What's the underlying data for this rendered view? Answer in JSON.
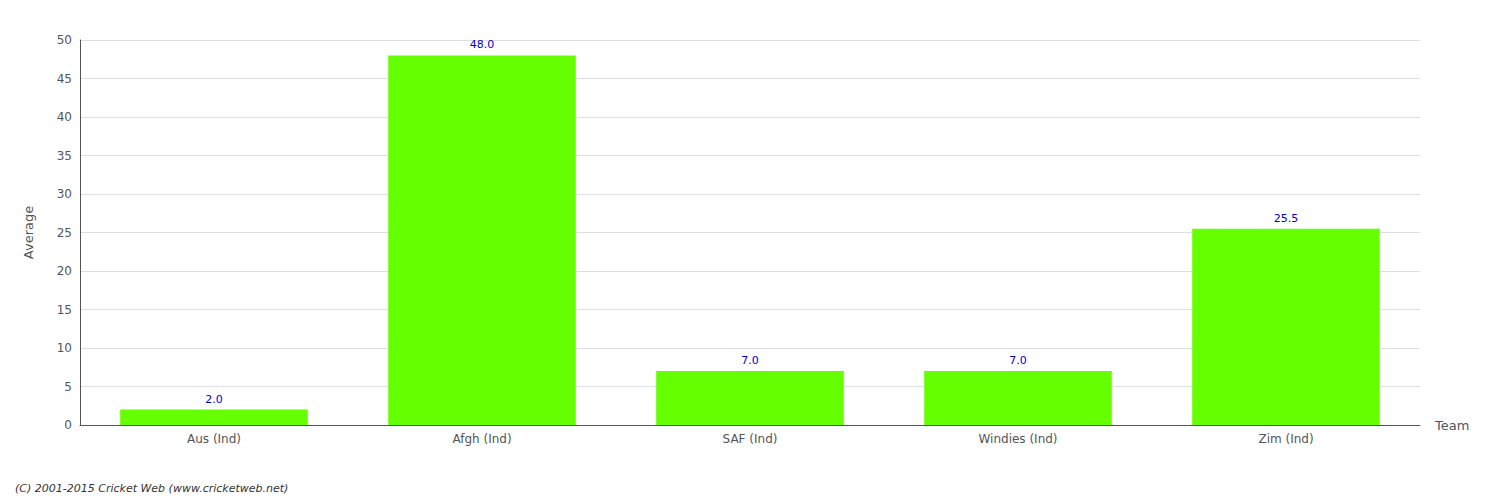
{
  "chart_data": {
    "type": "bar",
    "categories": [
      "Aus (Ind)",
      "Afgh (Ind)",
      "SAF (Ind)",
      "Windies (Ind)",
      "Zim (Ind)"
    ],
    "values": [
      2.0,
      48.0,
      7.0,
      7.0,
      25.5
    ],
    "value_labels": [
      "2.0",
      "48.0",
      "7.0",
      "7.0",
      "25.5"
    ],
    "data_labels": true,
    "color": "#66ff00",
    "xlabel": "Team",
    "ylabel": "Average",
    "ylim": [
      0,
      50
    ],
    "yticks": [
      0,
      5,
      10,
      15,
      20,
      25,
      30,
      35,
      40,
      45,
      50
    ],
    "grid": true,
    "annotations": [
      "(C) 2001-2015 Cricket Web (www.cricketweb.net)"
    ]
  }
}
